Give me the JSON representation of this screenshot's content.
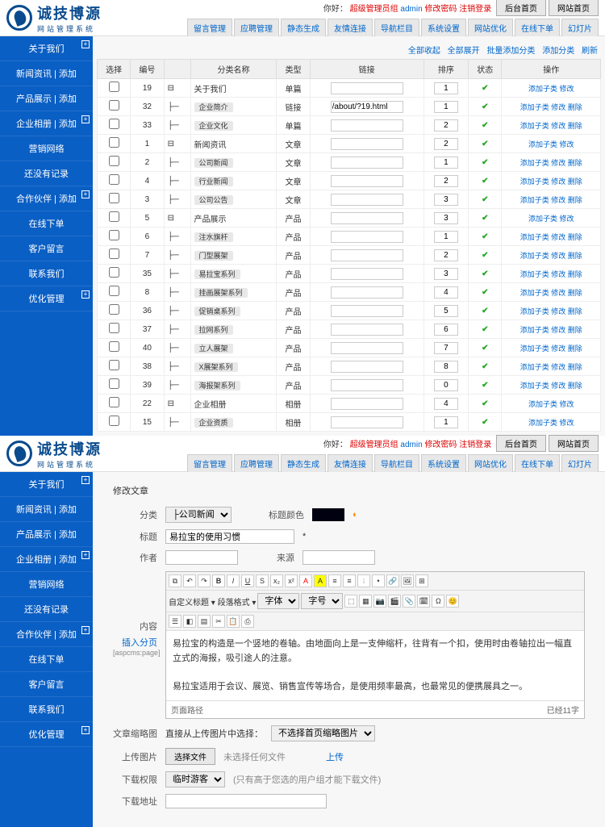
{
  "brand": {
    "title": "诚技博源",
    "subtitle": "网站管理系统"
  },
  "user": {
    "prefix": "你好：",
    "role": "超级管理员组",
    "name": "admin",
    "pwd": "修改密码",
    "logout": "注销登录"
  },
  "topbtns": [
    "后台首页",
    "网站首页"
  ],
  "tabs": [
    "留言管理",
    "应聘管理",
    "静态生成",
    "友情连接",
    "导航栏目",
    "系统设置",
    "网站优化",
    "在线下单",
    "幻灯片"
  ],
  "side": [
    {
      "t": "关于我们",
      "p": 1
    },
    {
      "t": "新闻资讯 | 添加",
      "p": 0
    },
    {
      "t": "产品展示 | 添加",
      "p": 0
    },
    {
      "t": "企业相册 | 添加",
      "p": 1
    },
    {
      "t": "营销网络",
      "p": 0
    },
    {
      "t": "还没有记录",
      "p": 0
    },
    {
      "t": "合作伙伴 | 添加",
      "p": 1
    },
    {
      "t": "在线下单",
      "p": 0
    },
    {
      "t": "客户留言",
      "p": 0
    },
    {
      "t": "联系我们",
      "p": 0
    },
    {
      "t": "优化管理",
      "p": 1
    }
  ],
  "tb": {
    "a": "全部收起",
    "b": "全部展开",
    "c": "批量添加分类",
    "d": "添加分类",
    "e": "刷新"
  },
  "cols": [
    "选择",
    "编号",
    "",
    "分类名称",
    "类型",
    "链接",
    "排序",
    "状态",
    "操作"
  ],
  "rows": [
    {
      "n": 19,
      "l": 0,
      "name": "关于我们",
      "badge": 0,
      "type": "单篇",
      "link": "",
      "s": 1,
      "op": "添加子类 修改"
    },
    {
      "n": 32,
      "l": 1,
      "name": "企业简介",
      "badge": 1,
      "type": "链接",
      "link": "/about/?19.html",
      "s": 1,
      "op": "添加子类 修改 删除"
    },
    {
      "n": 33,
      "l": 1,
      "name": "企业文化",
      "badge": 1,
      "type": "单篇",
      "link": "",
      "s": 2,
      "op": "添加子类 修改 删除"
    },
    {
      "n": 1,
      "l": 0,
      "name": "新闻资讯",
      "badge": 0,
      "type": "文章",
      "link": "",
      "s": 2,
      "op": "添加子类 修改"
    },
    {
      "n": 2,
      "l": 1,
      "name": "公司新闻",
      "badge": 1,
      "type": "文章",
      "link": "",
      "s": 1,
      "op": "添加子类 修改 删除"
    },
    {
      "n": 4,
      "l": 1,
      "name": "行业新闻",
      "badge": 1,
      "type": "文章",
      "link": "",
      "s": 2,
      "op": "添加子类 修改 删除"
    },
    {
      "n": 3,
      "l": 1,
      "name": "公司公告",
      "badge": 1,
      "type": "文章",
      "link": "",
      "s": 3,
      "op": "添加子类 修改 删除"
    },
    {
      "n": 5,
      "l": 0,
      "name": "产品展示",
      "badge": 0,
      "type": "产品",
      "link": "",
      "s": 3,
      "op": "添加子类 修改"
    },
    {
      "n": 6,
      "l": 1,
      "name": "注水旗杆",
      "badge": 1,
      "type": "产品",
      "link": "",
      "s": 1,
      "op": "添加子类 修改 删除"
    },
    {
      "n": 7,
      "l": 1,
      "name": "门型展架",
      "badge": 1,
      "type": "产品",
      "link": "",
      "s": 2,
      "op": "添加子类 修改 删除"
    },
    {
      "n": 35,
      "l": 1,
      "name": "易拉宝系列",
      "badge": 1,
      "type": "产品",
      "link": "",
      "s": 3,
      "op": "添加子类 修改 删除"
    },
    {
      "n": 8,
      "l": 1,
      "name": "挂画展架系列",
      "badge": 1,
      "type": "产品",
      "link": "",
      "s": 4,
      "op": "添加子类 修改 删除"
    },
    {
      "n": 36,
      "l": 1,
      "name": "促销桌系列",
      "badge": 1,
      "type": "产品",
      "link": "",
      "s": 5,
      "op": "添加子类 修改 删除"
    },
    {
      "n": 37,
      "l": 1,
      "name": "拉网系列",
      "badge": 1,
      "type": "产品",
      "link": "",
      "s": 6,
      "op": "添加子类 修改 删除"
    },
    {
      "n": 40,
      "l": 1,
      "name": "立人展架",
      "badge": 1,
      "type": "产品",
      "link": "",
      "s": 7,
      "op": "添加子类 修改 删除"
    },
    {
      "n": 38,
      "l": 1,
      "name": "X展架系列",
      "badge": 1,
      "type": "产品",
      "link": "",
      "s": 8,
      "op": "添加子类 修改 删除"
    },
    {
      "n": 39,
      "l": 1,
      "name": "海报架系列",
      "badge": 1,
      "type": "产品",
      "link": "",
      "s": 0,
      "op": "添加子类 修改 删除"
    },
    {
      "n": 22,
      "l": 0,
      "name": "企业相册",
      "badge": 0,
      "type": "相册",
      "link": "",
      "s": 4,
      "op": "添加子类 修改"
    },
    {
      "n": 15,
      "l": 1,
      "name": "企业资质",
      "badge": 1,
      "type": "相册",
      "link": "",
      "s": 1,
      "op": "添加子类 修改"
    }
  ],
  "form": {
    "title": "修改文章",
    "cat_l": "分类",
    "cat_v": "├公司新闻",
    "tcolor_l": "标题颜色",
    "tit_l": "标题",
    "tit_v": "易拉宝的使用习惯",
    "auth_l": "作者",
    "src_l": "来源",
    "body_l": "内容",
    "page_l": "插入分页",
    "page_t": "[aspcms:page]",
    "body": "易拉宝的构造是一个竖地的卷轴。由地面向上是一支伸缩杆，往背有一个扣，使用时由卷轴拉出一幅直立式的海报，吸引途人的注意。",
    "body2": "易拉宝适用于会议、展览、销售宣传等场合，是使用频率最高，也最常见的便携展具之一。",
    "path_l": "页面路径",
    "count": "已经11字",
    "img_l": "文章缩略图",
    "img_sel_l": "直接从上传图片中选择：",
    "img_sel": "不选择首页缩略图片",
    "upload_l": "上传图片",
    "upload_btn": "选择文件",
    "upload_t": "未选择任何文件",
    "upload_go": "上传",
    "dl_l": "下载权限",
    "dl_sel": "临时游客",
    "dl_note": "(只有高于您选的用户组才能下载文件)",
    "addr_l": "下载地址"
  }
}
